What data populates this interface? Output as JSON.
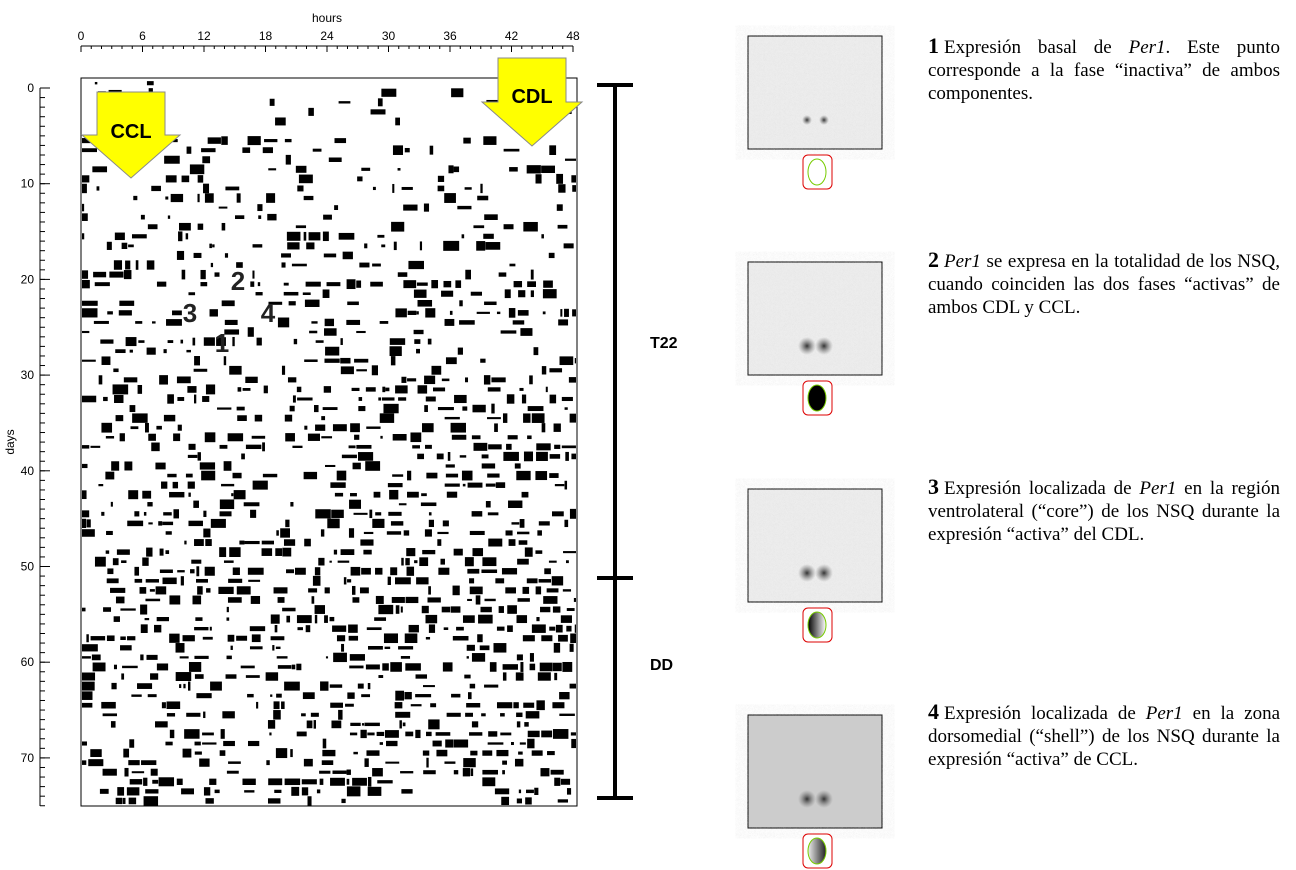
{
  "actogram": {
    "x_label": "hours",
    "y_label": "days",
    "x_ticks": [
      "0",
      "6",
      "12",
      "18",
      "24",
      "30",
      "36",
      "42",
      "48"
    ],
    "y_ticks": [
      "0",
      "10",
      "20",
      "30",
      "40",
      "50",
      "60",
      "70"
    ],
    "arrows": [
      "CCL",
      "CDL"
    ],
    "markers": [
      "1",
      "2",
      "3",
      "4"
    ],
    "phases": [
      "T22",
      "DD"
    ]
  },
  "panels": [
    {
      "number": "1",
      "segments": [
        {
          "text": "Expresión basal de "
        },
        {
          "text": "Per1",
          "italic": true
        },
        {
          "text": ". Este punto corresponde a la fase “inactiva” de ambos componentes."
        }
      ]
    },
    {
      "number": "2",
      "segments": [
        {
          "text": "Per1",
          "italic": true
        },
        {
          "text": " se expresa en la totalidad de los NSQ, cuando coinciden las dos fases “activas” de ambos CDL y CCL."
        }
      ]
    },
    {
      "number": "3",
      "segments": [
        {
          "text": "Expresión localizada de "
        },
        {
          "text": "Per1",
          "italic": true
        },
        {
          "text": " en la región ventrolateral (“core”) de los NSQ durante la expresión “activa” del CDL."
        }
      ]
    },
    {
      "number": "4",
      "segments": [
        {
          "text": "Expresión localizada de "
        },
        {
          "text": "Per1",
          "italic": true
        },
        {
          "text": " en la zona dorsomedial (“shell”) de los NSQ durante la expresión “activa” de CCL."
        }
      ]
    }
  ]
}
